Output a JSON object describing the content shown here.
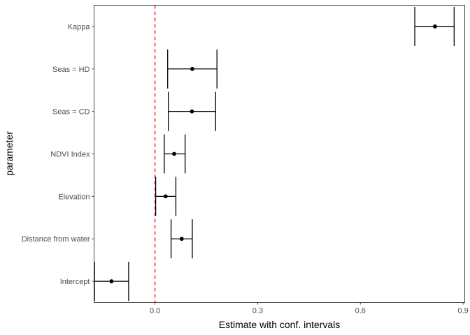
{
  "chart_data": {
    "type": "errorbar",
    "xlabel": "Estimate with conf. intervals",
    "ylabel": "parameter",
    "xlim": [
      -0.178,
      0.905
    ],
    "x_ticks": [
      0.0,
      0.3,
      0.6,
      0.9
    ],
    "x_tick_labels": [
      "0.0",
      "0.3",
      "0.6",
      "0.9"
    ],
    "reference_line": {
      "x": 0,
      "color": "#ff0000",
      "style": "dashed"
    },
    "grid": false,
    "border": true,
    "categories": [
      "Intercept",
      "Distance from water",
      "Elevation",
      "NDVI Index",
      "Seas = CD",
      "Seas = HD",
      "Kappa"
    ],
    "estimates": [
      -0.127,
      0.078,
      0.031,
      0.056,
      0.108,
      0.109,
      0.818
    ],
    "lower": [
      -0.177,
      0.047,
      0.002,
      0.027,
      0.039,
      0.037,
      0.759
    ],
    "upper": [
      -0.077,
      0.109,
      0.061,
      0.088,
      0.177,
      0.181,
      0.874
    ],
    "point_color": "#000000",
    "errorbar_color": "#000000"
  }
}
